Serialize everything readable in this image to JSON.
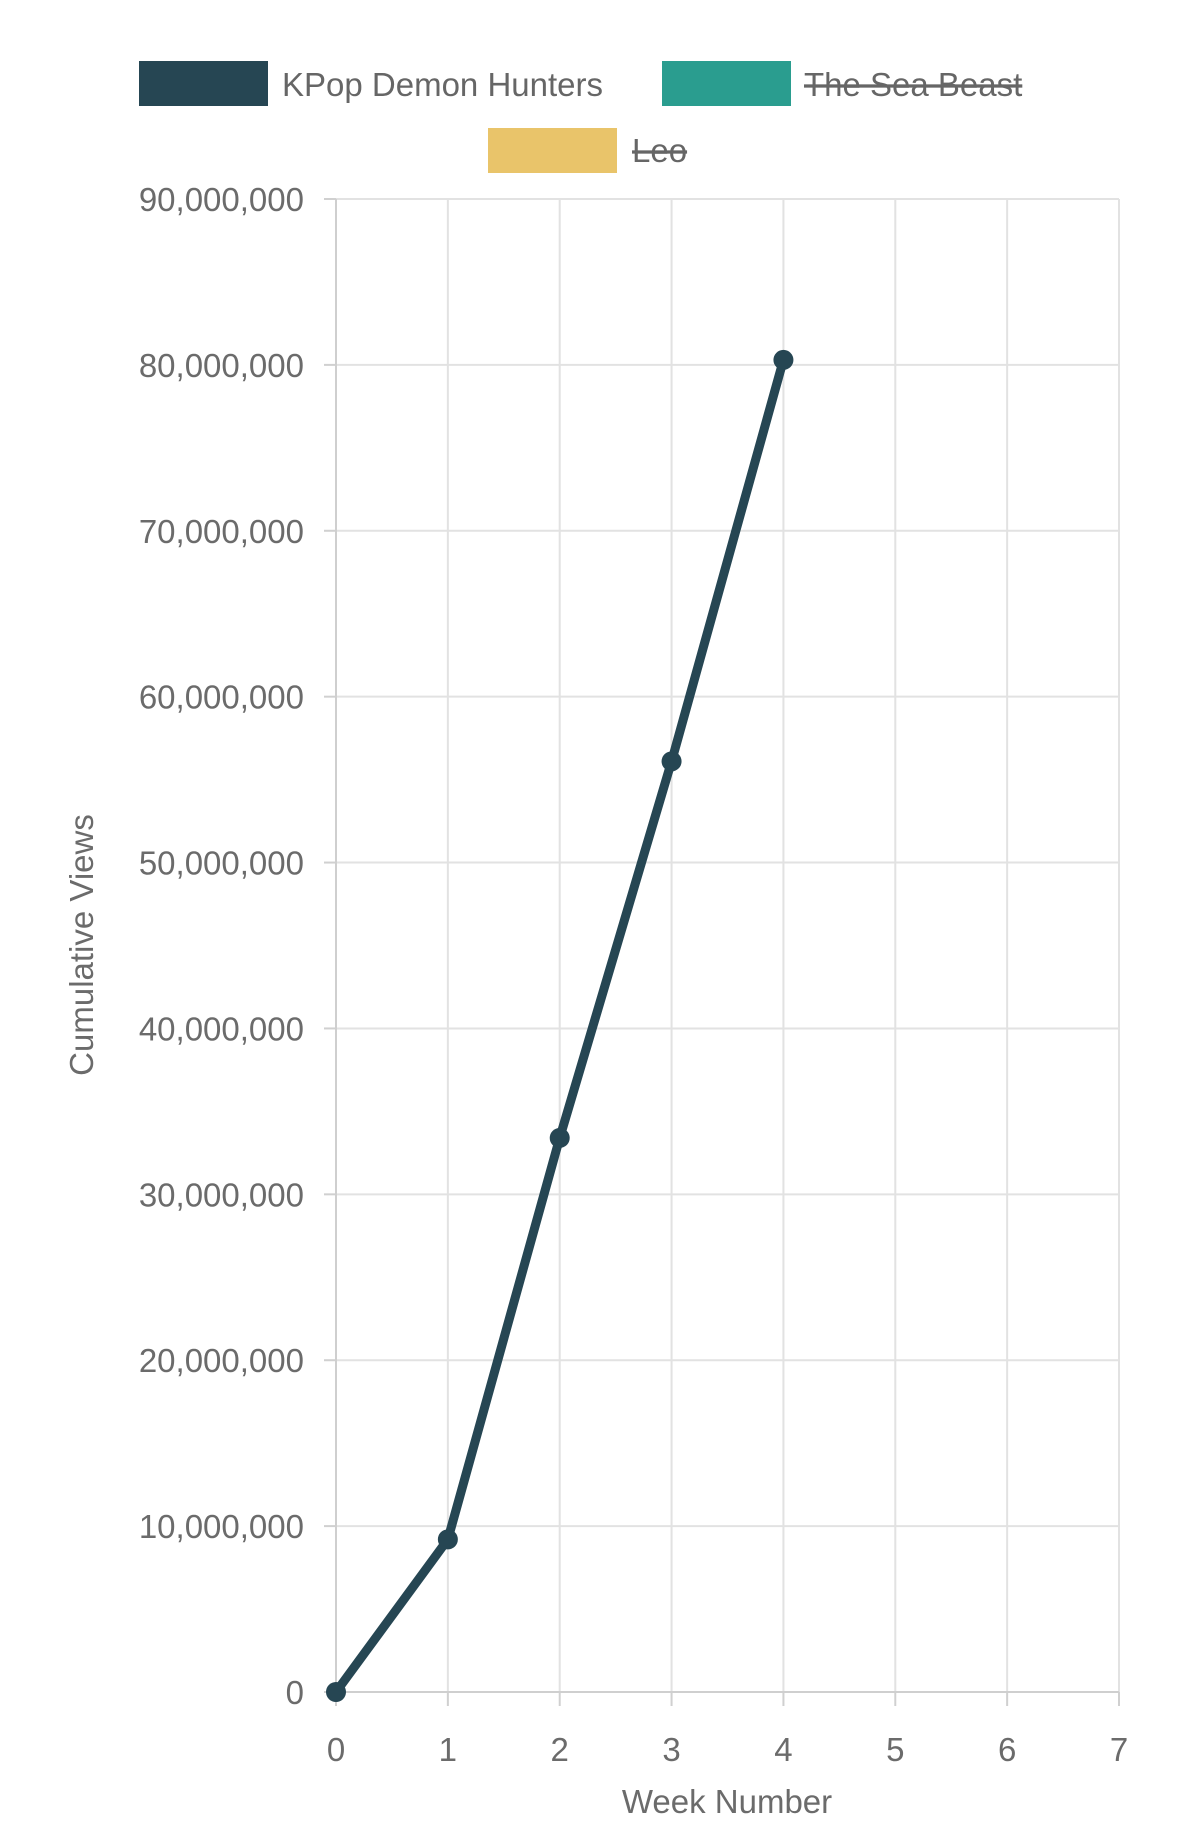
{
  "chart_data": {
    "type": "line",
    "title": "",
    "xlabel": "Week Number",
    "ylabel": "Cumulative Views",
    "xlim": [
      0,
      7
    ],
    "ylim": [
      0,
      90000000
    ],
    "x_ticks": [
      0,
      1,
      2,
      3,
      4,
      5,
      6,
      7
    ],
    "y_ticks": [
      0,
      10000000,
      20000000,
      30000000,
      40000000,
      50000000,
      60000000,
      70000000,
      80000000,
      90000000
    ],
    "y_tick_labels": [
      "0",
      "10,000,000",
      "20,000,000",
      "30,000,000",
      "40,000,000",
      "50,000,000",
      "60,000,000",
      "70,000,000",
      "80,000,000",
      "90,000,000"
    ],
    "x_tick_labels": [
      "0",
      "1",
      "2",
      "3",
      "4",
      "5",
      "6",
      "7"
    ],
    "grid": true,
    "legend_position": "top",
    "series": [
      {
        "name": "KPop Demon Hunters",
        "color": "#264653",
        "hidden": false,
        "x": [
          0,
          1,
          2,
          3,
          4
        ],
        "values": [
          0,
          9200000,
          33400000,
          56100000,
          80300000
        ]
      },
      {
        "name": "The Sea Beast",
        "color": "#2a9d8f",
        "hidden": true,
        "x": [],
        "values": []
      },
      {
        "name": "Leo",
        "color": "#e9c46a",
        "hidden": true,
        "x": [],
        "values": []
      }
    ]
  }
}
